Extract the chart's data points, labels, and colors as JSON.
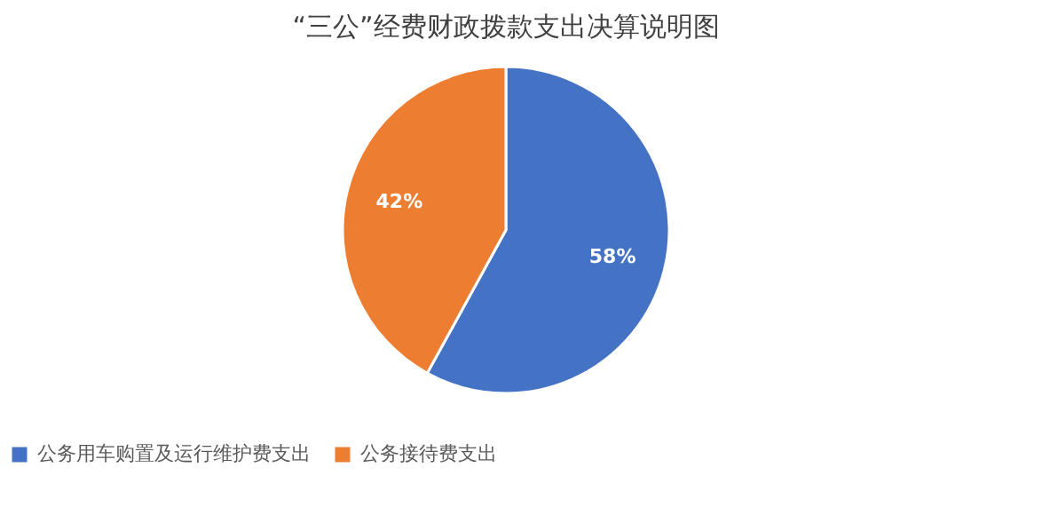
{
  "chart_data": {
    "type": "pie",
    "title": "“三公”经费财政拨款支出决算说明图",
    "categories": [
      "公务用车购置及运行维护费支出",
      "公务接待费支出"
    ],
    "values": [
      58,
      42
    ],
    "colors": [
      "#4472c4",
      "#ed7d31"
    ],
    "value_labels": [
      "58%",
      "42%"
    ],
    "legend": "bottom"
  }
}
